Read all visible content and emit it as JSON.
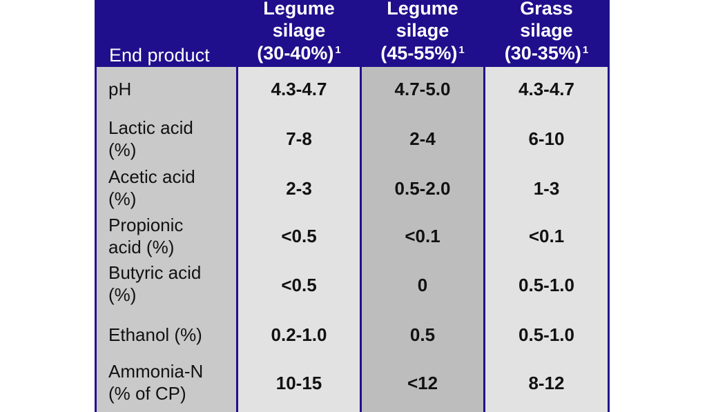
{
  "header": {
    "label_column": "End product",
    "columns": [
      {
        "line1": "Legume",
        "line2": "silage",
        "line3": "(30-40%)",
        "footnote": "1"
      },
      {
        "line1": "Legume",
        "line2": "silage",
        "line3": "(45-55%)",
        "footnote": "1"
      },
      {
        "line1": "Grass",
        "line2": "silage",
        "line3": "(30-35%)",
        "footnote": "1"
      }
    ]
  },
  "rows": [
    {
      "label": "pH",
      "values": [
        "4.3-4.7",
        "4.7-5.0",
        "4.3-4.7"
      ]
    },
    {
      "label": "Lactic acid\n(%)",
      "values": [
        "7-8",
        "2-4",
        "6-10"
      ]
    },
    {
      "label": "Acetic acid\n(%)",
      "values": [
        "2-3",
        "0.5-2.0",
        "1-3"
      ]
    },
    {
      "label": "Propionic\nacid (%)",
      "values": [
        "<0.5",
        "<0.1",
        "<0.1"
      ]
    },
    {
      "label": "Butyric acid\n(%)",
      "values": [
        "<0.5",
        "0",
        "0.5-1.0"
      ]
    },
    {
      "label": "Ethanol (%)",
      "values": [
        "0.2-1.0",
        "0.5",
        "0.5-1.0"
      ]
    },
    {
      "label": "Ammonia-N\n(% of CP)",
      "values": [
        "10-15",
        "<12",
        "8-12"
      ]
    }
  ],
  "colors": {
    "header_bg": "#1f0f8c",
    "header_text": "#ffffff",
    "label_col_bg": "#c9c9c9",
    "light_col_bg": "#e2e2e2",
    "dark_col_bg": "#bdbdbd"
  }
}
